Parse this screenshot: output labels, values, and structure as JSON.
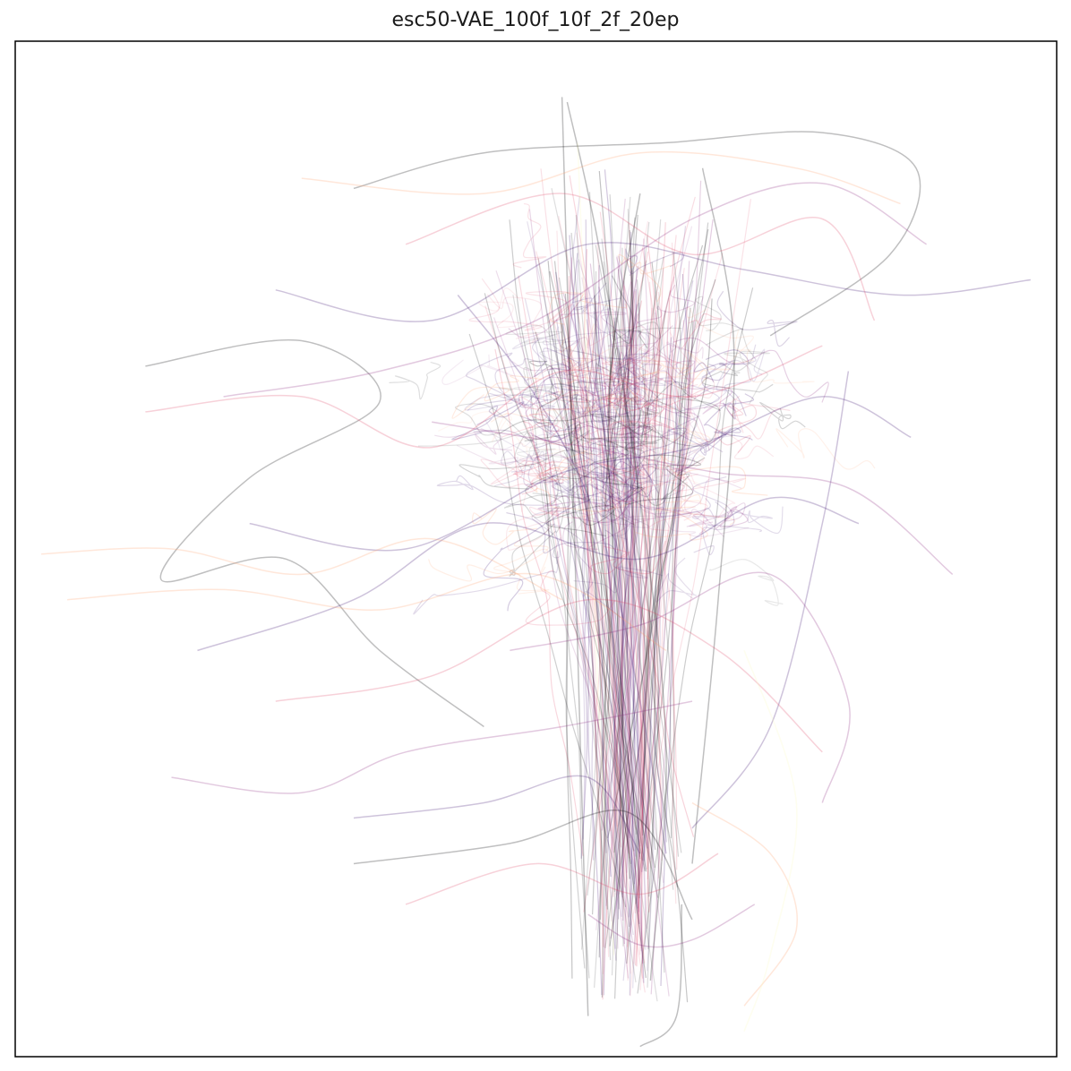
{
  "chart_data": {
    "type": "line",
    "title": "esc50-VAE_100f_10f_2f_20ep",
    "xlabel": "",
    "ylabel": "",
    "xticks": [],
    "yticks": [],
    "xlim": [
      -1.0,
      1.0
    ],
    "ylim": [
      -1.0,
      1.0
    ],
    "grid": false,
    "legend": "none",
    "line_alpha": 0.25,
    "colormap": [
      "#000004",
      "#3b0f70",
      "#8c2981",
      "#de4968",
      "#fe9f6d",
      "#fcfdbf"
    ],
    "frame_color": "#000000",
    "series": [
      {
        "color": "#000004",
        "points": [
          [
            0.05,
            0.89
          ],
          [
            0.1,
            -0.92
          ]
        ]
      },
      {
        "color": "#000004",
        "points": [
          [
            0.06,
            0.88
          ],
          [
            0.12,
            0.6
          ],
          [
            0.2,
            0.1
          ],
          [
            0.25,
            -0.4
          ],
          [
            0.22,
            -0.85
          ]
        ]
      },
      {
        "color": "#000004",
        "points": [
          [
            -0.75,
            0.36
          ],
          [
            -0.45,
            0.41
          ],
          [
            -0.3,
            0.29
          ],
          [
            -0.55,
            0.14
          ],
          [
            -0.72,
            -0.06
          ],
          [
            -0.48,
            -0.02
          ],
          [
            -0.3,
            -0.2
          ],
          [
            -0.1,
            -0.35
          ]
        ]
      },
      {
        "color": "#000004",
        "points": [
          [
            -0.35,
            0.71
          ],
          [
            -0.1,
            0.78
          ],
          [
            0.25,
            0.8
          ],
          [
            0.55,
            0.82
          ],
          [
            0.73,
            0.75
          ],
          [
            0.68,
            0.58
          ],
          [
            0.45,
            0.42
          ]
        ]
      },
      {
        "color": "#000004",
        "points": [
          [
            -0.35,
            -0.62
          ],
          [
            -0.05,
            -0.58
          ],
          [
            0.18,
            -0.52
          ],
          [
            0.3,
            -0.73
          ]
        ]
      },
      {
        "color": "#000004",
        "points": [
          [
            0.28,
            -0.7
          ],
          [
            0.27,
            -0.92
          ],
          [
            0.2,
            -0.98
          ]
        ]
      },
      {
        "color": "#000004",
        "points": [
          [
            0.18,
            -0.65
          ],
          [
            0.16,
            -0.2
          ],
          [
            0.14,
            0.3
          ],
          [
            0.2,
            0.7
          ]
        ]
      },
      {
        "color": "#000004",
        "points": [
          [
            0.3,
            -0.62
          ],
          [
            0.35,
            -0.1
          ],
          [
            0.38,
            0.4
          ],
          [
            0.32,
            0.75
          ]
        ]
      },
      {
        "color": "#3b0f70",
        "points": [
          [
            -0.5,
            0.51
          ],
          [
            -0.2,
            0.45
          ],
          [
            0.1,
            0.6
          ],
          [
            0.4,
            0.55
          ],
          [
            0.7,
            0.5
          ],
          [
            0.95,
            0.53
          ]
        ]
      },
      {
        "color": "#3b0f70",
        "points": [
          [
            -0.65,
            -0.2
          ],
          [
            -0.35,
            -0.1
          ],
          [
            -0.1,
            0.05
          ],
          [
            0.2,
            -0.02
          ],
          [
            0.45,
            0.1
          ],
          [
            0.62,
            0.05
          ]
        ]
      },
      {
        "color": "#3b0f70",
        "points": [
          [
            -0.55,
            0.05
          ],
          [
            -0.25,
            0.0
          ],
          [
            0.05,
            0.15
          ],
          [
            0.3,
            0.2
          ],
          [
            0.55,
            0.3
          ],
          [
            0.72,
            0.22
          ]
        ]
      },
      {
        "color": "#3b0f70",
        "points": [
          [
            -0.15,
            0.5
          ],
          [
            0.0,
            0.3
          ],
          [
            0.12,
            0.05
          ],
          [
            0.2,
            -0.3
          ],
          [
            0.25,
            -0.6
          ]
        ]
      },
      {
        "color": "#3b0f70",
        "points": [
          [
            0.6,
            0.35
          ],
          [
            0.55,
            0.05
          ],
          [
            0.45,
            -0.35
          ],
          [
            0.3,
            -0.55
          ]
        ]
      },
      {
        "color": "#3b0f70",
        "points": [
          [
            -0.35,
            -0.53
          ],
          [
            -0.1,
            -0.5
          ],
          [
            0.1,
            -0.45
          ],
          [
            0.2,
            -0.6
          ]
        ]
      },
      {
        "color": "#8c2981",
        "points": [
          [
            -0.7,
            -0.45
          ],
          [
            -0.45,
            -0.48
          ],
          [
            -0.25,
            -0.4
          ],
          [
            0.05,
            -0.35
          ],
          [
            0.3,
            -0.3
          ]
        ]
      },
      {
        "color": "#8c2981",
        "points": [
          [
            -0.6,
            0.3
          ],
          [
            -0.3,
            0.35
          ],
          [
            0.0,
            0.45
          ],
          [
            0.3,
            0.65
          ],
          [
            0.55,
            0.72
          ],
          [
            0.75,
            0.6
          ]
        ]
      },
      {
        "color": "#8c2981",
        "points": [
          [
            -0.2,
            0.25
          ],
          [
            0.1,
            0.2
          ],
          [
            0.35,
            0.15
          ],
          [
            0.6,
            0.12
          ],
          [
            0.8,
            -0.05
          ]
        ]
      },
      {
        "color": "#8c2981",
        "points": [
          [
            -0.05,
            -0.2
          ],
          [
            0.2,
            -0.15
          ],
          [
            0.45,
            -0.05
          ],
          [
            0.6,
            -0.3
          ],
          [
            0.55,
            -0.5
          ]
        ]
      },
      {
        "color": "#8c2981",
        "points": [
          [
            0.1,
            -0.72
          ],
          [
            0.2,
            -0.78
          ],
          [
            0.3,
            -0.77
          ],
          [
            0.42,
            -0.7
          ]
        ]
      },
      {
        "color": "#de4968",
        "points": [
          [
            -0.75,
            0.27
          ],
          [
            -0.45,
            0.3
          ],
          [
            -0.2,
            0.2
          ],
          [
            0.05,
            0.35
          ],
          [
            0.3,
            0.3
          ],
          [
            0.55,
            0.4
          ]
        ]
      },
      {
        "color": "#de4968",
        "points": [
          [
            -0.5,
            -0.3
          ],
          [
            -0.2,
            -0.25
          ],
          [
            0.1,
            -0.1
          ],
          [
            0.35,
            -0.2
          ],
          [
            0.55,
            -0.4
          ]
        ]
      },
      {
        "color": "#de4968",
        "points": [
          [
            -0.25,
            0.6
          ],
          [
            0.05,
            0.7
          ],
          [
            0.3,
            0.58
          ],
          [
            0.55,
            0.65
          ],
          [
            0.65,
            0.45
          ]
        ]
      },
      {
        "color": "#de4968",
        "points": [
          [
            -0.25,
            -0.7
          ],
          [
            0.0,
            -0.62
          ],
          [
            0.2,
            -0.68
          ],
          [
            0.35,
            -0.6
          ]
        ]
      },
      {
        "color": "#fe9f6d",
        "points": [
          [
            -0.95,
            -0.01
          ],
          [
            -0.7,
            0.0
          ],
          [
            -0.45,
            -0.05
          ],
          [
            -0.2,
            0.02
          ],
          [
            0.05,
            -0.1
          ]
        ]
      },
      {
        "color": "#fe9f6d",
        "points": [
          [
            -0.9,
            -0.1
          ],
          [
            -0.6,
            -0.08
          ],
          [
            -0.3,
            -0.12
          ],
          [
            0.0,
            -0.05
          ],
          [
            0.25,
            -0.2
          ]
        ]
      },
      {
        "color": "#fe9f6d",
        "points": [
          [
            -0.45,
            0.73
          ],
          [
            -0.1,
            0.7
          ],
          [
            0.2,
            0.78
          ],
          [
            0.5,
            0.75
          ],
          [
            0.7,
            0.68
          ]
        ]
      },
      {
        "color": "#fe9f6d",
        "points": [
          [
            0.3,
            -0.5
          ],
          [
            0.45,
            -0.6
          ],
          [
            0.5,
            -0.75
          ],
          [
            0.4,
            -0.9
          ]
        ]
      },
      {
        "color": "#fcfdbf",
        "points": [
          [
            0.4,
            -0.2
          ],
          [
            0.5,
            -0.5
          ],
          [
            0.45,
            -0.8
          ],
          [
            0.4,
            -0.95
          ]
        ]
      },
      {
        "color": "#fcfdbf",
        "points": [
          [
            0.08,
            0.8
          ],
          [
            0.1,
            0.3
          ],
          [
            0.12,
            -0.3
          ],
          [
            0.15,
            -0.8
          ]
        ]
      }
    ]
  }
}
